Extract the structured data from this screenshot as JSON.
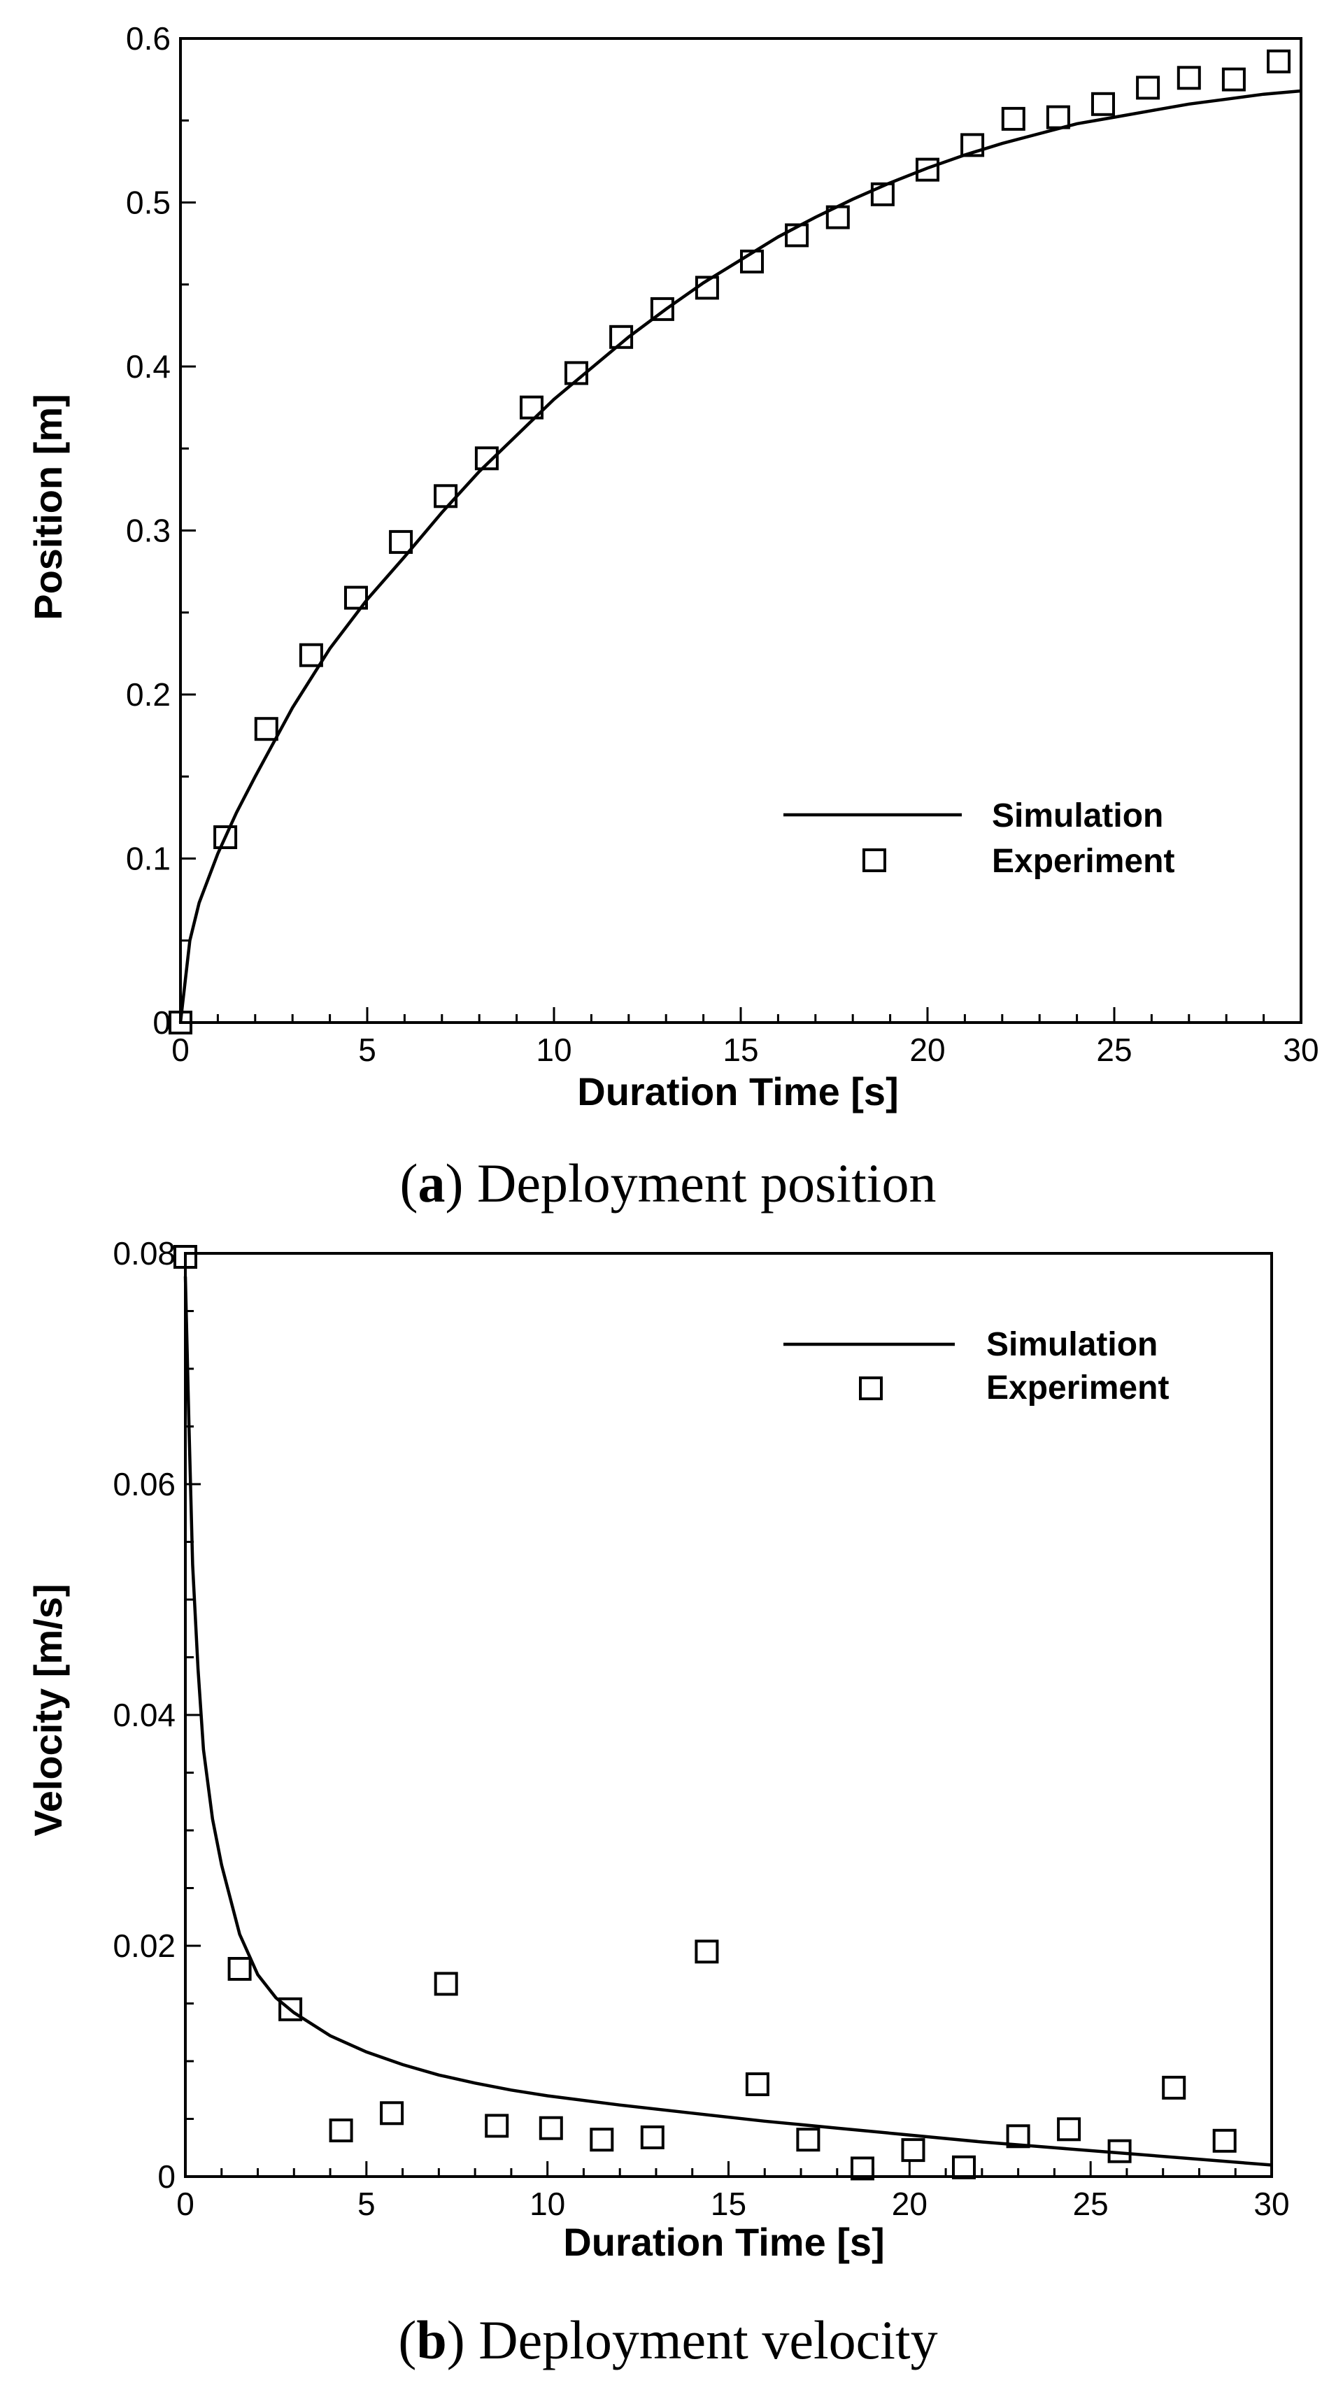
{
  "chart_data": [
    {
      "type": "line",
      "caption": {
        "letter": "a",
        "text": "Deployment  position"
      },
      "xlabel": "Duration Time [s]",
      "ylabel": "Position [m]",
      "xlim": [
        0,
        30
      ],
      "ylim": [
        0,
        0.6
      ],
      "x_ticks": [
        0,
        5,
        10,
        15,
        20,
        25,
        30
      ],
      "x_tick_labels": [
        "0",
        "5",
        "10",
        "15",
        "20",
        "25",
        "30"
      ],
      "y_ticks": [
        0,
        0.1,
        0.2,
        0.3,
        0.4,
        0.5,
        0.6
      ],
      "y_tick_labels": [
        "0",
        "0.1",
        "0.2",
        "0.3",
        "0.4",
        "0.5",
        "0.6"
      ],
      "grid": false,
      "legend_position": "lower-right",
      "series": [
        {
          "name": "Simulation",
          "style": "line",
          "x": [
            0,
            0.25,
            0.5,
            1,
            1.5,
            2,
            3,
            4,
            5,
            6,
            7,
            8,
            9,
            10,
            11,
            12,
            13,
            14,
            15,
            16,
            17,
            18,
            19,
            20,
            21,
            22,
            23,
            24,
            25,
            26,
            27,
            28,
            29,
            30
          ],
          "y": [
            0,
            0.05,
            0.073,
            0.103,
            0.128,
            0.15,
            0.192,
            0.228,
            0.258,
            0.284,
            0.311,
            0.336,
            0.358,
            0.38,
            0.399,
            0.418,
            0.435,
            0.451,
            0.465,
            0.479,
            0.491,
            0.502,
            0.512,
            0.521,
            0.529,
            0.536,
            0.542,
            0.548,
            0.552,
            0.556,
            0.56,
            0.563,
            0.566,
            0.568
          ]
        },
        {
          "name": "Experiment",
          "style": "markers",
          "x": [
            0,
            1.2,
            2.3,
            3.5,
            4.7,
            5.9,
            7.1,
            8.2,
            9.4,
            10.6,
            11.8,
            12.9,
            14.1,
            15.3,
            16.5,
            17.6,
            18.8,
            20.0,
            21.2,
            22.3,
            23.5,
            24.7,
            25.9,
            27.0,
            28.2,
            29.4
          ],
          "y": [
            0,
            0.113,
            0.179,
            0.224,
            0.259,
            0.293,
            0.321,
            0.344,
            0.375,
            0.396,
            0.418,
            0.435,
            0.448,
            0.464,
            0.48,
            0.491,
            0.505,
            0.52,
            0.535,
            0.551,
            0.552,
            0.56,
            0.57,
            0.576,
            0.575,
            0.586
          ]
        }
      ]
    },
    {
      "type": "line",
      "caption": {
        "letter": "b",
        "text": "Deployment  velocity"
      },
      "xlabel": "Duration Time [s]",
      "ylabel": "Velocity [m/s]",
      "xlim": [
        0,
        30
      ],
      "ylim": [
        0,
        0.08
      ],
      "x_ticks": [
        0,
        5,
        10,
        15,
        20,
        25,
        30
      ],
      "x_tick_labels": [
        "0",
        "5",
        "10",
        "15",
        "20",
        "25",
        "30"
      ],
      "y_ticks": [
        0,
        0.02,
        0.04,
        0.06,
        0.08
      ],
      "y_tick_labels": [
        "0",
        "0.02",
        "0.04",
        "0.06",
        "0.08"
      ],
      "grid": false,
      "legend_position": "top-right",
      "series": [
        {
          "name": "Simulation",
          "style": "line",
          "x": [
            0,
            0.1,
            0.2,
            0.35,
            0.5,
            0.75,
            1,
            1.5,
            2,
            2.5,
            3,
            4,
            5,
            6,
            7,
            8,
            9,
            10,
            12,
            14,
            16,
            18,
            20,
            22,
            24,
            26,
            28,
            30
          ],
          "y": [
            0.078,
            0.065,
            0.053,
            0.044,
            0.037,
            0.031,
            0.027,
            0.021,
            0.0175,
            0.0155,
            0.0142,
            0.0122,
            0.0108,
            0.0097,
            0.0088,
            0.0081,
            0.0075,
            0.007,
            0.0062,
            0.0055,
            0.0048,
            0.0042,
            0.0036,
            0.003,
            0.0025,
            0.002,
            0.0015,
            0.001
          ]
        },
        {
          "name": "Experiment",
          "style": "markers",
          "x": [
            0,
            1.5,
            2.9,
            4.3,
            5.7,
            7.2,
            8.6,
            10.1,
            11.5,
            12.9,
            14.4,
            15.8,
            17.2,
            18.7,
            20.1,
            21.5,
            23.0,
            24.4,
            25.8,
            27.3,
            28.7
          ],
          "y": [
            0.0797,
            0.018,
            0.0145,
            0.004,
            0.0055,
            0.0167,
            0.0044,
            0.0042,
            0.0032,
            0.0034,
            0.0195,
            0.008,
            0.0032,
            0.0007,
            0.0023,
            0.0008,
            0.0035,
            0.0041,
            0.0022,
            0.0077,
            0.0031
          ]
        }
      ]
    }
  ]
}
